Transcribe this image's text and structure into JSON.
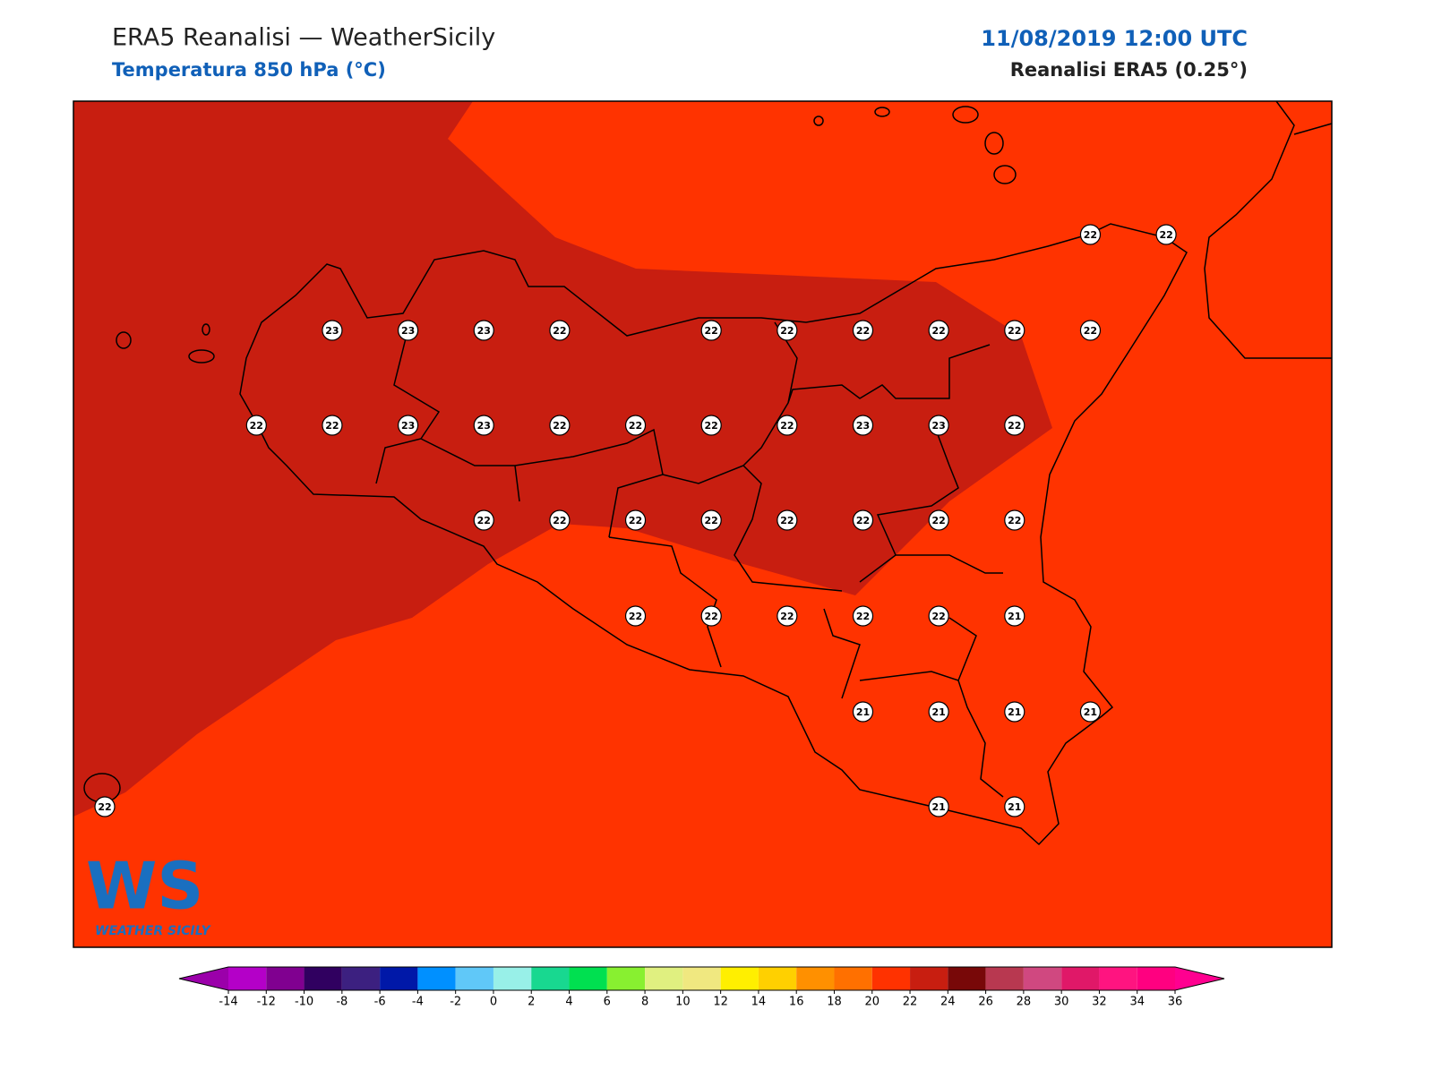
{
  "header": {
    "title": "ERA5 Reanalisi — WeatherSicily",
    "subtitle": "Temperatura 850 hPa (°C)",
    "date": "11/08/2019 12:00 UTC",
    "source": "Reanalisi ERA5 (0.25°)"
  },
  "stations": {
    "rows": [
      [
        null,
        null,
        null,
        null,
        null,
        null,
        null,
        null,
        null,
        null,
        null,
        null,
        null,
        "22",
        "22"
      ],
      [
        null,
        null,
        null,
        "23",
        "23",
        "23",
        "22",
        null,
        "22",
        "22",
        "22",
        "22",
        "22",
        "22",
        null
      ],
      [
        null,
        null,
        "22",
        "22",
        "23",
        "23",
        "22",
        "22",
        "22",
        "22",
        "23",
        "23",
        "22",
        null,
        null
      ],
      [
        null,
        null,
        null,
        null,
        null,
        "22",
        "22",
        "22",
        "22",
        "22",
        "22",
        "22",
        "22",
        null,
        null
      ],
      [
        null,
        null,
        null,
        null,
        null,
        null,
        null,
        "22",
        "22",
        "22",
        "22",
        "22",
        "21",
        null,
        null
      ],
      [
        null,
        null,
        null,
        null,
        null,
        null,
        null,
        null,
        null,
        null,
        "21",
        "21",
        "21",
        "21",
        null
      ],
      [
        "22",
        null,
        null,
        null,
        null,
        null,
        null,
        null,
        null,
        null,
        null,
        "21",
        "21",
        null,
        null
      ]
    ]
  },
  "logo": {
    "text": "WS",
    "subtext": "WEATHER SICILY"
  },
  "colorbar": {
    "ticks": [
      -14,
      -12,
      -10,
      -8,
      -6,
      -4,
      -2,
      0,
      2,
      4,
      6,
      8,
      10,
      12,
      14,
      16,
      18,
      20,
      22,
      24,
      26,
      28,
      30,
      32,
      34,
      36
    ],
    "colors": [
      "#b400c8",
      "#800090",
      "#300060",
      "#3c2080",
      "#0018a8",
      "#0090ff",
      "#60c8f8",
      "#98f0e8",
      "#18d890",
      "#00e050",
      "#88f030",
      "#e0f080",
      "#f0e880",
      "#ffef00",
      "#ffd000",
      "#ff9000",
      "#ff7000",
      "#ff3200",
      "#c81e10",
      "#780808",
      "#b83850",
      "#d04880",
      "#e01868",
      "#ff1480",
      "#ff0080"
    ],
    "extend_colors": [
      "#9b00aa",
      "#ff0090"
    ]
  }
}
